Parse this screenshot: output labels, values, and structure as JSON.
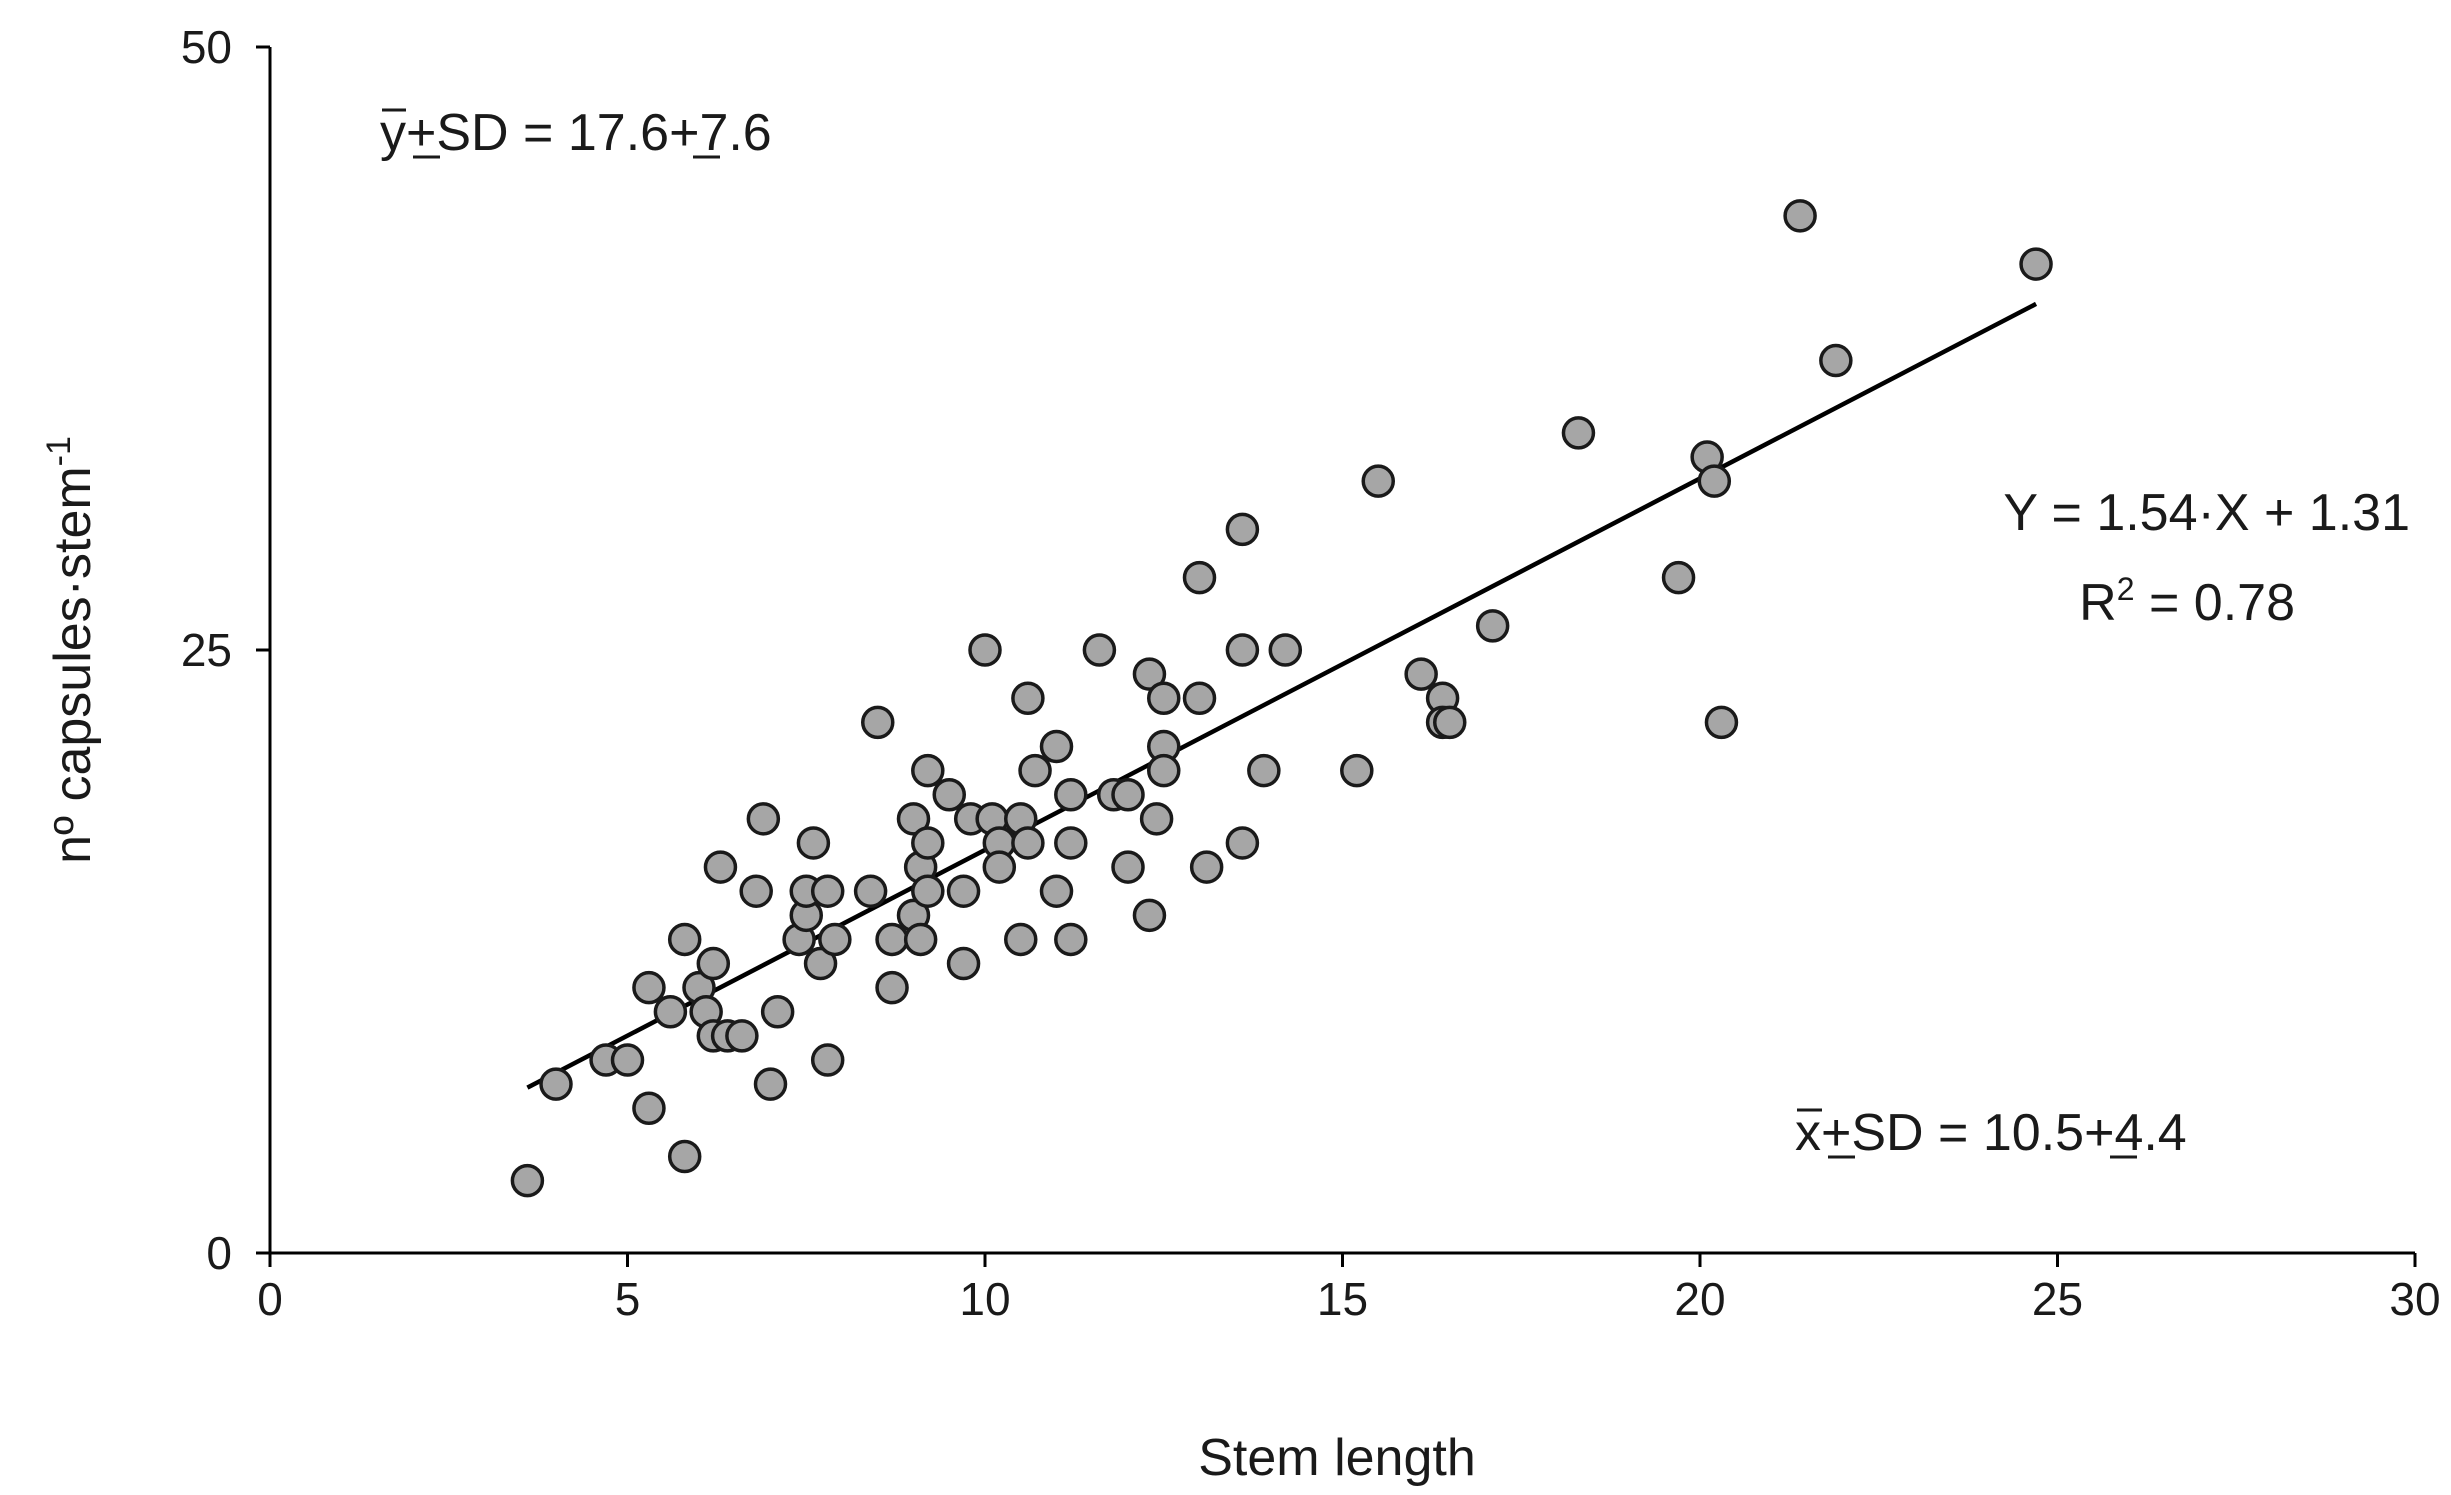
{
  "chart_data": {
    "type": "scatter",
    "title": "",
    "xlabel": "Stem length",
    "ylabel": "nº capsules·stem",
    "ylabel_sup": "-1",
    "xlim": [
      0,
      30
    ],
    "ylim": [
      0,
      50
    ],
    "x_ticks": [
      0,
      5,
      10,
      15,
      20,
      25,
      30
    ],
    "y_ticks": [
      0,
      25,
      50
    ],
    "grid": false,
    "legend": "none",
    "colors": {
      "point_fill": "#a6a6a6",
      "point_stroke": "#1a1a1a",
      "line": "#000000"
    },
    "series": [
      {
        "points": [
          [
            3.6,
            3
          ],
          [
            4.0,
            7
          ],
          [
            4.7,
            8
          ],
          [
            5.0,
            8
          ],
          [
            5.3,
            6
          ],
          [
            5.3,
            11
          ],
          [
            5.6,
            10
          ],
          [
            5.8,
            4
          ],
          [
            5.8,
            13
          ],
          [
            6.0,
            11
          ],
          [
            6.1,
            10
          ],
          [
            6.2,
            9
          ],
          [
            6.2,
            12
          ],
          [
            6.3,
            16
          ],
          [
            6.4,
            9
          ],
          [
            6.6,
            9
          ],
          [
            6.8,
            15
          ],
          [
            6.9,
            18
          ],
          [
            7.0,
            7
          ],
          [
            7.1,
            10
          ],
          [
            7.4,
            13
          ],
          [
            7.5,
            14
          ],
          [
            7.5,
            15
          ],
          [
            7.6,
            17
          ],
          [
            7.7,
            12
          ],
          [
            7.8,
            15
          ],
          [
            7.8,
            8
          ],
          [
            7.9,
            13
          ],
          [
            8.4,
            15
          ],
          [
            8.5,
            22
          ],
          [
            8.7,
            11
          ],
          [
            8.7,
            13
          ],
          [
            9.0,
            18
          ],
          [
            9.0,
            14
          ],
          [
            9.1,
            16
          ],
          [
            9.1,
            13
          ],
          [
            9.2,
            17
          ],
          [
            9.2,
            15
          ],
          [
            9.2,
            20
          ],
          [
            9.5,
            19
          ],
          [
            9.7,
            12
          ],
          [
            9.7,
            15
          ],
          [
            9.8,
            18
          ],
          [
            10.0,
            25
          ],
          [
            10.1,
            18
          ],
          [
            10.2,
            17
          ],
          [
            10.2,
            16
          ],
          [
            10.5,
            18
          ],
          [
            10.5,
            13
          ],
          [
            10.6,
            23
          ],
          [
            10.6,
            17
          ],
          [
            10.7,
            20
          ],
          [
            11.0,
            21
          ],
          [
            11.0,
            15
          ],
          [
            11.2,
            19
          ],
          [
            11.2,
            17
          ],
          [
            11.2,
            13
          ],
          [
            11.6,
            25
          ],
          [
            11.8,
            19
          ],
          [
            12.0,
            19
          ],
          [
            12.0,
            16
          ],
          [
            12.3,
            14
          ],
          [
            12.3,
            24
          ],
          [
            12.4,
            18
          ],
          [
            12.5,
            23
          ],
          [
            12.5,
            21
          ],
          [
            12.5,
            20
          ],
          [
            13.0,
            28
          ],
          [
            13.0,
            23
          ],
          [
            13.1,
            16
          ],
          [
            13.6,
            30
          ],
          [
            13.6,
            25
          ],
          [
            13.6,
            17
          ],
          [
            13.9,
            20
          ],
          [
            14.2,
            25
          ],
          [
            15.2,
            20
          ],
          [
            15.5,
            32
          ],
          [
            16.1,
            24
          ],
          [
            16.4,
            23
          ],
          [
            16.4,
            22
          ],
          [
            16.5,
            22
          ],
          [
            17.1,
            26
          ],
          [
            18.3,
            34
          ],
          [
            19.7,
            28
          ],
          [
            20.1,
            33
          ],
          [
            20.2,
            32
          ],
          [
            20.3,
            22
          ],
          [
            21.4,
            43
          ],
          [
            21.9,
            37
          ],
          [
            24.7,
            41
          ]
        ]
      }
    ],
    "trendline": {
      "x_range": [
        3.6,
        24.7
      ],
      "slope": 1.54,
      "intercept": 1.31
    },
    "annotations": {
      "y_stat_symbol": "y",
      "y_stat_text": "+SD = 17.6+7.6",
      "x_stat_symbol": "x",
      "x_stat_text": "+SD = 10.5+4.4",
      "equation": "Y = 1.54·X + 1.31",
      "r2_prefix": "R",
      "r2_sup": "2",
      "r2_suffix": " = 0.78"
    }
  }
}
